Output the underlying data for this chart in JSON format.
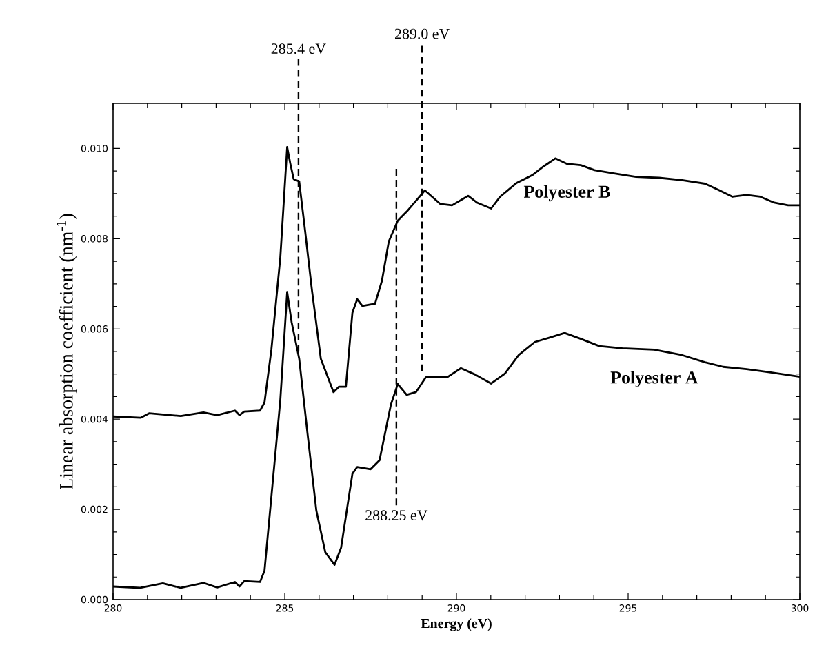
{
  "chart_data": {
    "type": "line",
    "xlabel": "**Energy (eV)**",
    "ylabel": "Linear absorption coefficient (nm$^{-1}$)",
    "xlim": [
      280,
      300
    ],
    "ylim": [
      0,
      0.011
    ],
    "xticks": [
      280,
      285,
      290,
      295,
      300
    ],
    "yticks": [
      {
        "value": 0,
        "label": "0.000"
      },
      {
        "value": 0.002,
        "label": "0.002"
      },
      {
        "value": 0.004,
        "label": "0.004"
      },
      {
        "value": 0.006,
        "label": "0.006"
      },
      {
        "value": 0.008,
        "label": "0.008"
      },
      {
        "value": 0.01,
        "label": "0.010"
      }
    ],
    "grid": false,
    "legend": false,
    "marker": "none",
    "line_style": "solid",
    "series": [
      {
        "name": "**Polyester A**",
        "color": "#000000",
        "x": [
          280,
          280.79,
          281.45,
          281.97,
          282.63,
          283.03,
          283.55,
          283.68,
          283.82,
          284.28,
          284.41,
          284.61,
          284.87,
          285.07,
          285.2,
          285.42,
          285.66,
          285.92,
          286.18,
          286.45,
          286.64,
          286.97,
          287.11,
          287.5,
          287.76,
          288.09,
          288.29,
          288.55,
          288.82,
          289.11,
          289.73,
          290.13,
          290.54,
          291.01,
          291.41,
          291.81,
          292.28,
          292.68,
          293.15,
          293.62,
          294.16,
          294.83,
          295.76,
          296.57,
          297.24,
          297.77,
          298.45,
          299.12,
          300
        ],
        "values": [
          0.00029,
          0.00026,
          0.00036,
          0.00026,
          0.00037,
          0.00027,
          0.00039,
          0.00029,
          0.00041,
          0.00039,
          0.00064,
          0.00228,
          0.00442,
          0.00682,
          0.00615,
          0.00534,
          0.0037,
          0.00197,
          0.00105,
          0.00077,
          0.00115,
          0.00279,
          0.00294,
          0.00289,
          0.00309,
          0.00432,
          0.00478,
          0.00454,
          0.0046,
          0.00493,
          0.00493,
          0.00513,
          0.00499,
          0.00479,
          0.00501,
          0.00542,
          0.00571,
          0.0058,
          0.00591,
          0.00578,
          0.00562,
          0.00557,
          0.00554,
          0.00542,
          0.00526,
          0.00516,
          0.00511,
          0.00504,
          0.00494
        ]
      },
      {
        "name": "**Polyester B**",
        "color": "#000000",
        "x": [
          280,
          280.8,
          281.05,
          281.97,
          282.63,
          283.03,
          283.55,
          283.68,
          283.82,
          284.28,
          284.41,
          284.61,
          284.87,
          285.07,
          285.16,
          285.26,
          285.42,
          285.59,
          285.79,
          286.05,
          286.42,
          286.58,
          286.78,
          286.97,
          287.11,
          287.26,
          287.63,
          287.83,
          288.03,
          288.29,
          288.55,
          289.08,
          289.53,
          289.87,
          290.34,
          290.6,
          291.01,
          291.27,
          291.74,
          292.21,
          292.55,
          292.88,
          293.22,
          293.62,
          294.02,
          294.56,
          295.23,
          295.9,
          296.57,
          297.24,
          297.64,
          298.04,
          298.45,
          298.85,
          299.25,
          299.66,
          300
        ],
        "values": [
          0.00406,
          0.00403,
          0.00413,
          0.00407,
          0.00415,
          0.00409,
          0.00419,
          0.00409,
          0.00417,
          0.00419,
          0.00437,
          0.00554,
          0.00758,
          0.01003,
          0.00967,
          0.00932,
          0.00927,
          0.00819,
          0.00687,
          0.00534,
          0.0046,
          0.00472,
          0.00472,
          0.00636,
          0.00666,
          0.00651,
          0.00656,
          0.00707,
          0.00794,
          0.0084,
          0.0086,
          0.00907,
          0.00877,
          0.00874,
          0.00895,
          0.0088,
          0.00867,
          0.00893,
          0.00923,
          0.00941,
          0.00961,
          0.00978,
          0.00966,
          0.00963,
          0.00952,
          0.00945,
          0.00937,
          0.00935,
          0.0093,
          0.00922,
          0.00908,
          0.00893,
          0.00897,
          0.00893,
          0.0088,
          0.00874,
          0.00874
        ]
      }
    ],
    "ref_lines": [
      {
        "axis": "x",
        "value": 285.4,
        "label": "285.4 eV",
        "color": "#000000",
        "line_style": "dashed"
      },
      {
        "axis": "x",
        "value": 289.0,
        "label": "289.0 eV",
        "color": "#000000",
        "line_style": "dashed"
      },
      {
        "axis": "x",
        "value": 288.25,
        "label": "288.25 eV",
        "color": "#000000",
        "line_style": "dashed"
      }
    ]
  }
}
